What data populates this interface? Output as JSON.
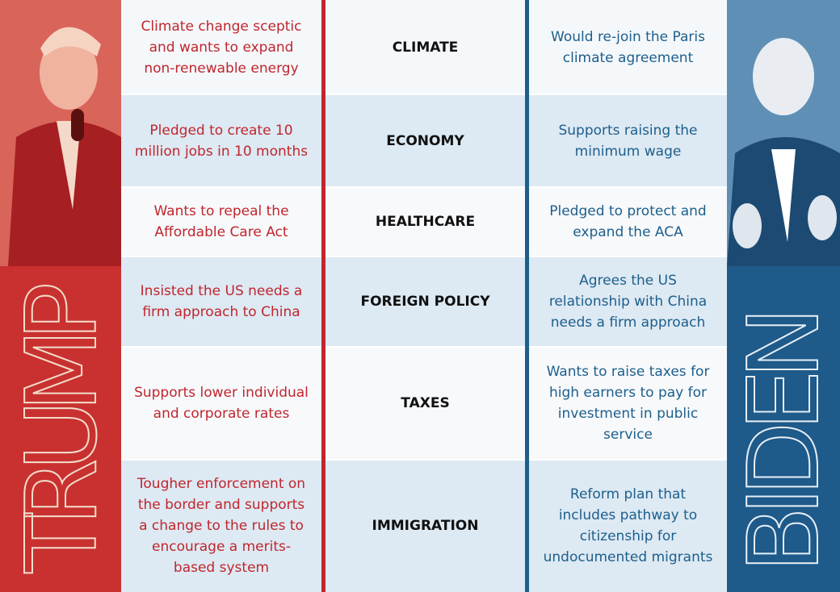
{
  "candidates": {
    "left": "TRUMP",
    "right": "BIDEN"
  },
  "rows": [
    {
      "topic": "CLIMATE",
      "left": "Climate change sceptic and wants to expand non-renewable energy",
      "right": "Would re-join the Paris climate agreement"
    },
    {
      "topic": "ECONOMY",
      "left": "Pledged to create 10 million jobs in 10 months",
      "right": "Supports raising the minimum wage"
    },
    {
      "topic": "HEALTHCARE",
      "left": "Wants to repeal the Affordable Care Act",
      "right": "Pledged to protect and expand the ACA"
    },
    {
      "topic": "FOREIGN POLICY",
      "left": "Insisted the US needs a firm approach to China",
      "right": "Agrees the US relationship with China needs a firm approach"
    },
    {
      "topic": "TAXES",
      "left": "Supports lower individual and corporate rates",
      "right": "Wants to raise taxes for high earners to pay for investment in public service"
    },
    {
      "topic": "IMMIGRATION",
      "left": "Tougher enforcement on the border and supports a change to the rules to encourage a merits-based system",
      "right": "Reform plan that includes pathway to citizenship for undocumented migrants"
    }
  ]
}
